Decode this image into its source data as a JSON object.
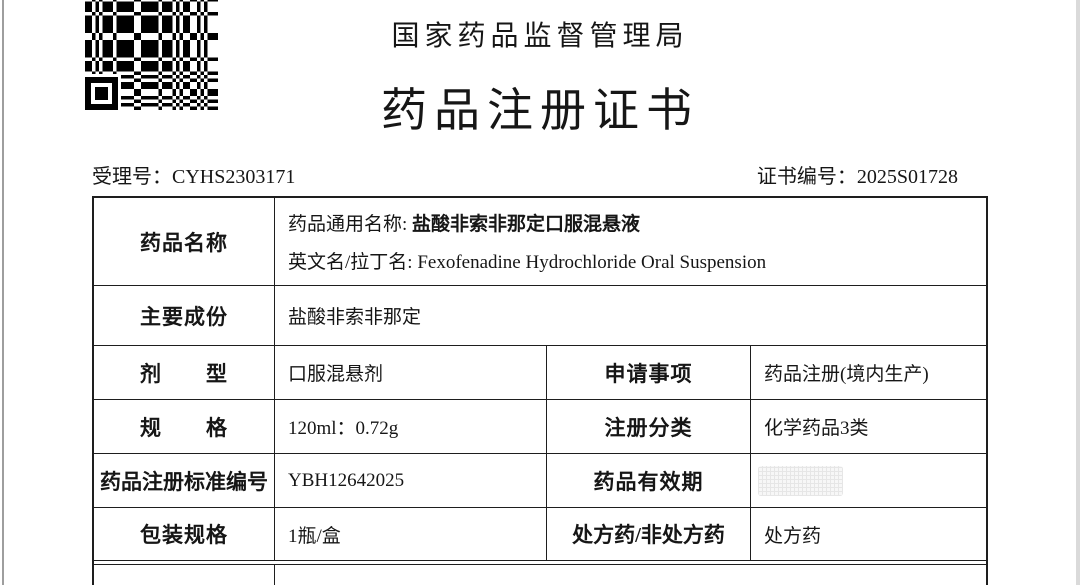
{
  "page": {
    "background": "#ffffff",
    "line_color": "#1e1e1e"
  },
  "header": {
    "authority": "国家药品监督管理局",
    "title": "药品注册证书",
    "qr_icon": "qr-code"
  },
  "meta": {
    "acceptance_label": "受理号：",
    "acceptance_value": "CYHS2303171",
    "certificate_label": "证书编号：",
    "certificate_value": "2025S01728"
  },
  "table": {
    "drug_name": {
      "label": "药品名称",
      "generic_label": "药品通用名称: ",
      "generic_value": "盐酸非索非那定口服混悬液",
      "english_label": "英文名/拉丁名: ",
      "english_value": "Fexofenadine Hydrochloride Oral Suspension"
    },
    "main_ingredient": {
      "label": "主要成份",
      "value": "盐酸非索非那定"
    },
    "dosage_form": {
      "label": "剂　　型",
      "value": "口服混悬剂"
    },
    "application_item": {
      "label": "申请事项",
      "value": "药品注册(境内生产)"
    },
    "specification": {
      "label": "规　　格",
      "value": "120ml：0.72g"
    },
    "registration_category": {
      "label": "注册分类",
      "value": "化学药品3类"
    },
    "standard_number": {
      "label": "药品注册标准编号",
      "value": "YBH12642025"
    },
    "validity": {
      "label": "药品有效期",
      "value": "",
      "redacted": true
    },
    "package_spec": {
      "label": "包装规格",
      "value": "1瓶/盒"
    },
    "prescription_type": {
      "label": "处方药/非处方药",
      "value": "处方药"
    }
  }
}
